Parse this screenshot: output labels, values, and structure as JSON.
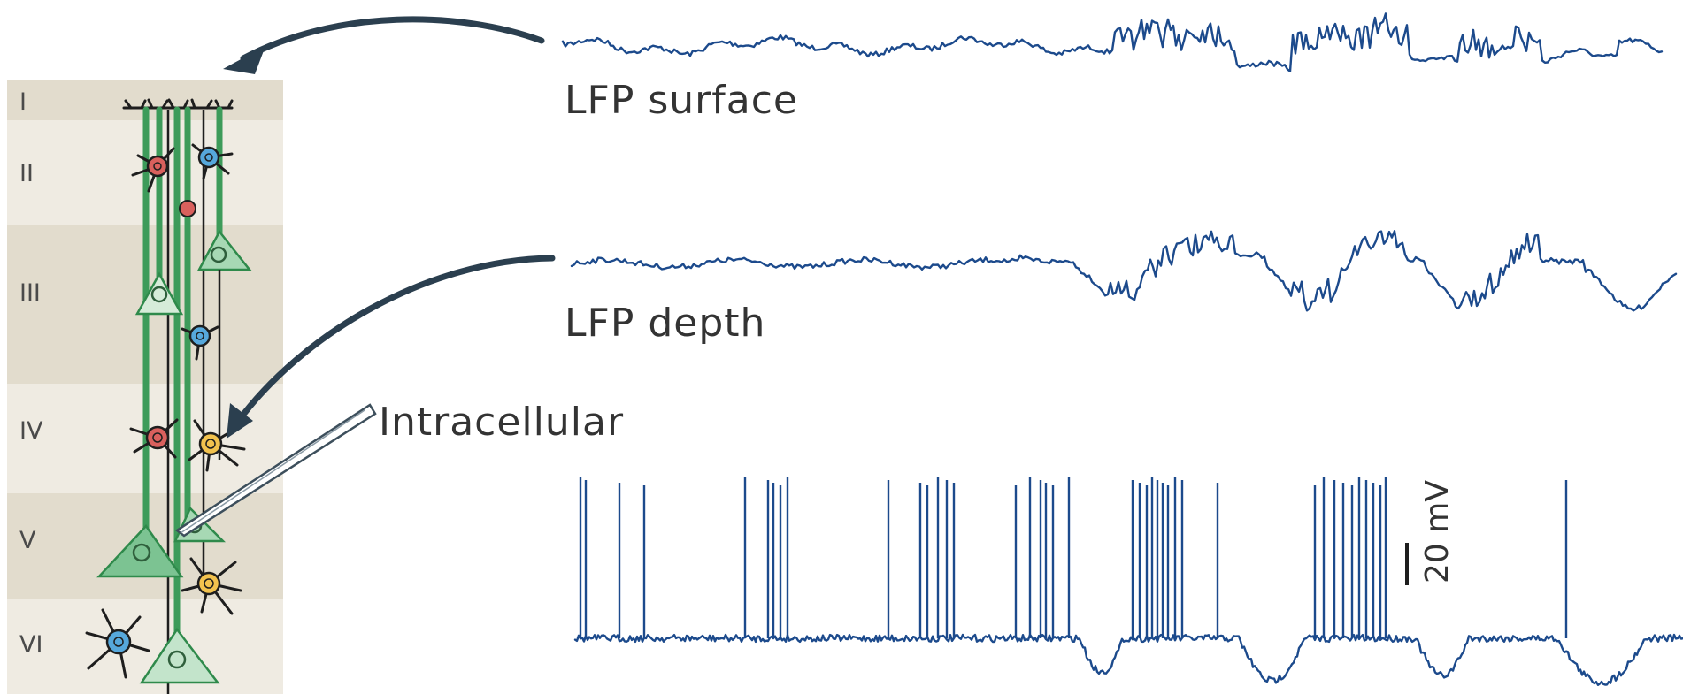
{
  "layers": [
    "I",
    "II",
    "III",
    "IV",
    "V",
    "VI"
  ],
  "traces": {
    "surface_label": "LFP surface",
    "depth_label": "LFP depth",
    "intracellular_label": "Intracellular"
  },
  "scale_bar": {
    "label": "20 mV"
  },
  "colors": {
    "trace": "#1c4a8c",
    "band_light": "#efebe2",
    "band_dark": "#e2dccd",
    "neuron_green": "#7cc392",
    "interneuron_red": "#d9605d",
    "interneuron_blue": "#56a8dc",
    "interneuron_yellow": "#f2c24e",
    "arrow": "#2b3f4f"
  },
  "icons": [
    "cortical-column-icon",
    "pyramidal-neuron-icon",
    "interneuron-icon",
    "electrode-icon"
  ]
}
